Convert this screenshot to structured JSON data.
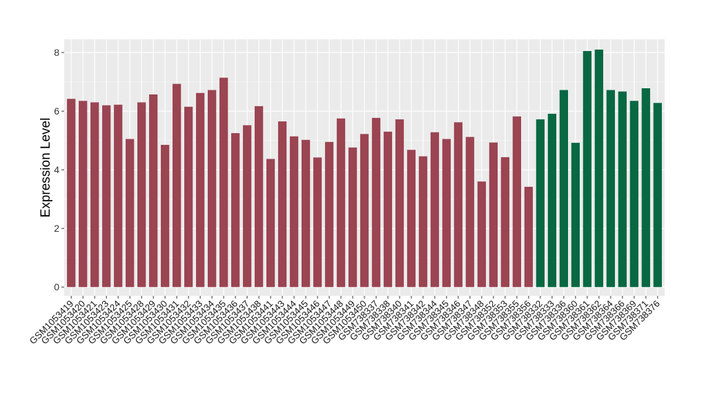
{
  "chart_data": {
    "type": "bar",
    "title": "",
    "xlabel": "",
    "ylabel": "Expression Level",
    "ylim": [
      -0.3,
      8.45
    ],
    "yticks": [
      0,
      2,
      4,
      6,
      8
    ],
    "grid": true,
    "legend": "none",
    "colors": {
      "group_a": "#9b4452",
      "group_b": "#076842",
      "panel_bg": "#ebebeb",
      "grid_major": "#ffffff"
    },
    "categories": [
      "GSM1053419",
      "GSM1053420",
      "GSM1053421",
      "GSM1053423",
      "GSM1053424",
      "GSM1053425",
      "GSM1053428",
      "GSM1053429",
      "GSM1053430",
      "GSM1053431",
      "GSM1053432",
      "GSM1053433",
      "GSM1053434",
      "GSM1053435",
      "GSM1053436",
      "GSM1053437",
      "GSM1053438",
      "GSM1053441",
      "GSM1053443",
      "GSM1053444",
      "GSM1053445",
      "GSM1053446",
      "GSM1053447",
      "GSM1053448",
      "GSM1053449",
      "GSM1053450",
      "GSM738337",
      "GSM738338",
      "GSM738340",
      "GSM738341",
      "GSM738342",
      "GSM738344",
      "GSM738345",
      "GSM738346",
      "GSM738347",
      "GSM738348",
      "GSM738352",
      "GSM738353",
      "GSM738355",
      "GSM738356",
      "GSM738332",
      "GSM738333",
      "GSM738336",
      "GSM738360",
      "GSM738361",
      "GSM738362",
      "GSM738364",
      "GSM738366",
      "GSM738369",
      "GSM738371",
      "GSM738376"
    ],
    "values": [
      6.42,
      6.35,
      6.3,
      6.2,
      6.22,
      5.05,
      6.3,
      6.57,
      4.85,
      6.93,
      6.15,
      6.62,
      6.72,
      7.14,
      5.25,
      5.52,
      6.17,
      4.37,
      5.65,
      5.14,
      5.02,
      4.42,
      4.95,
      5.75,
      4.76,
      5.22,
      5.77,
      5.3,
      5.72,
      4.68,
      4.46,
      5.28,
      5.05,
      5.62,
      5.12,
      3.6,
      4.93,
      4.43,
      5.82,
      3.42,
      5.72,
      5.91,
      6.72,
      4.92,
      8.05,
      8.1,
      6.72,
      6.67,
      6.35,
      6.78,
      6.28
    ],
    "groups": [
      "a",
      "a",
      "a",
      "a",
      "a",
      "a",
      "a",
      "a",
      "a",
      "a",
      "a",
      "a",
      "a",
      "a",
      "a",
      "a",
      "a",
      "a",
      "a",
      "a",
      "a",
      "a",
      "a",
      "a",
      "a",
      "a",
      "a",
      "a",
      "a",
      "a",
      "a",
      "a",
      "a",
      "a",
      "a",
      "a",
      "a",
      "a",
      "a",
      "a",
      "b",
      "b",
      "b",
      "b",
      "b",
      "b",
      "b",
      "b",
      "b",
      "b",
      "b"
    ]
  }
}
